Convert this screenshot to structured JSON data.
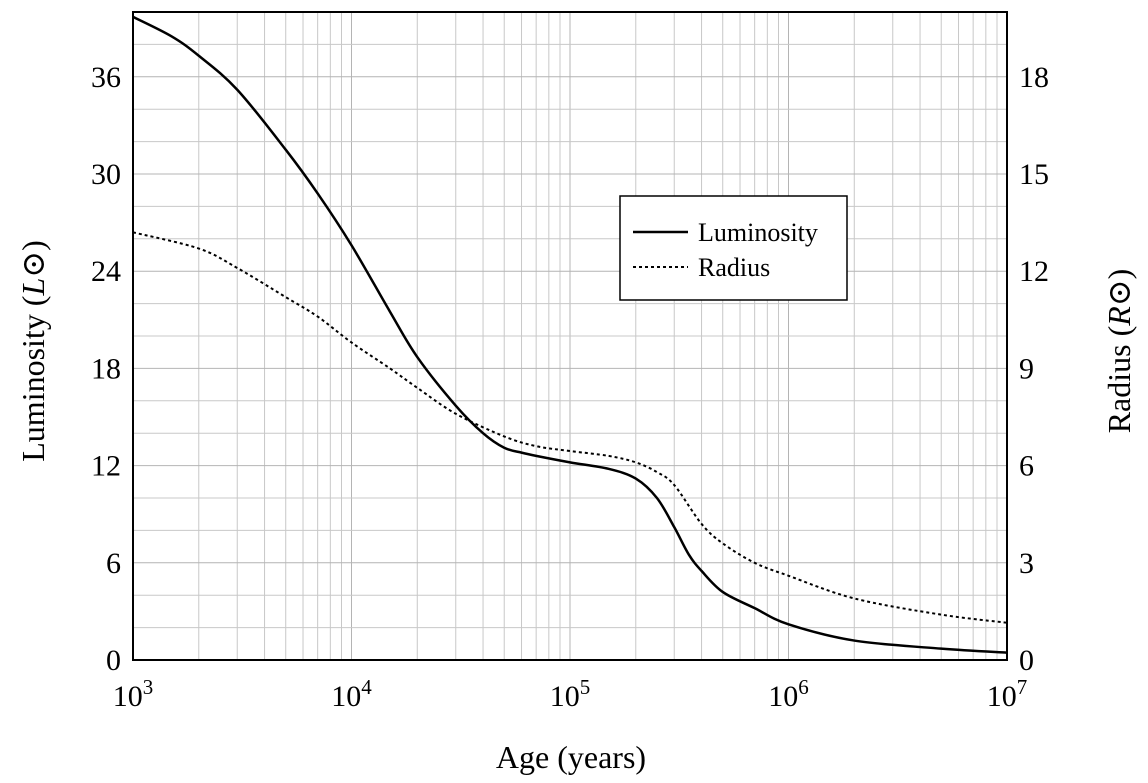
{
  "chart_data": {
    "type": "line",
    "xlabel": "Age (years)",
    "ylabel": "Luminosity",
    "ylabel_unit": "L⊙",
    "y2label": "Radius",
    "y2label_unit": "R⊙",
    "xscale": "log",
    "xlim": [
      1000,
      10000000
    ],
    "ylim": [
      0,
      40
    ],
    "y2lim": [
      0,
      20
    ],
    "x_ticks": [
      {
        "base": "10",
        "exp": "3",
        "value": 1000
      },
      {
        "base": "10",
        "exp": "4",
        "value": 10000
      },
      {
        "base": "10",
        "exp": "5",
        "value": 100000
      },
      {
        "base": "10",
        "exp": "6",
        "value": 1000000
      },
      {
        "base": "10",
        "exp": "7",
        "value": 10000000
      }
    ],
    "y_ticks": [
      "0",
      "6",
      "12",
      "18",
      "24",
      "30",
      "36"
    ],
    "y2_ticks": [
      "0",
      "3",
      "6",
      "9",
      "12",
      "15",
      "18"
    ],
    "grid": true,
    "legend": {
      "placement": "right-center",
      "entries": [
        "Luminosity",
        "Radius"
      ]
    },
    "series": [
      {
        "name": "Luminosity",
        "axis": "left",
        "style": "solid",
        "x": [
          1000,
          1500,
          2000,
          3000,
          5000,
          7000,
          10000,
          15000,
          20000,
          30000,
          40000,
          50000,
          60000,
          70000,
          100000,
          150000,
          200000,
          250000,
          300000,
          350000,
          400000,
          500000,
          700000,
          1000000,
          2000000,
          5000000,
          10000000
        ],
        "y": [
          39.7,
          38.5,
          37.3,
          35.2,
          31.5,
          28.8,
          25.6,
          21.5,
          18.7,
          15.7,
          14.0,
          13.1,
          12.8,
          12.6,
          12.2,
          11.8,
          11.2,
          10.0,
          8.2,
          6.5,
          5.5,
          4.2,
          3.2,
          2.2,
          1.2,
          0.7,
          0.45
        ]
      },
      {
        "name": "Radius",
        "axis": "right",
        "style": "dotted",
        "x": [
          1000,
          2000,
          3000,
          5000,
          7000,
          10000,
          15000,
          20000,
          30000,
          50000,
          70000,
          100000,
          150000,
          200000,
          250000,
          300000,
          400000,
          500000,
          700000,
          1000000,
          2000000,
          5000000,
          10000000
        ],
        "y": [
          13.2,
          12.7,
          12.1,
          11.2,
          10.6,
          9.8,
          9.0,
          8.4,
          7.6,
          6.9,
          6.6,
          6.45,
          6.3,
          6.1,
          5.8,
          5.4,
          4.2,
          3.6,
          3.0,
          2.6,
          1.9,
          1.4,
          1.15
        ]
      }
    ]
  }
}
